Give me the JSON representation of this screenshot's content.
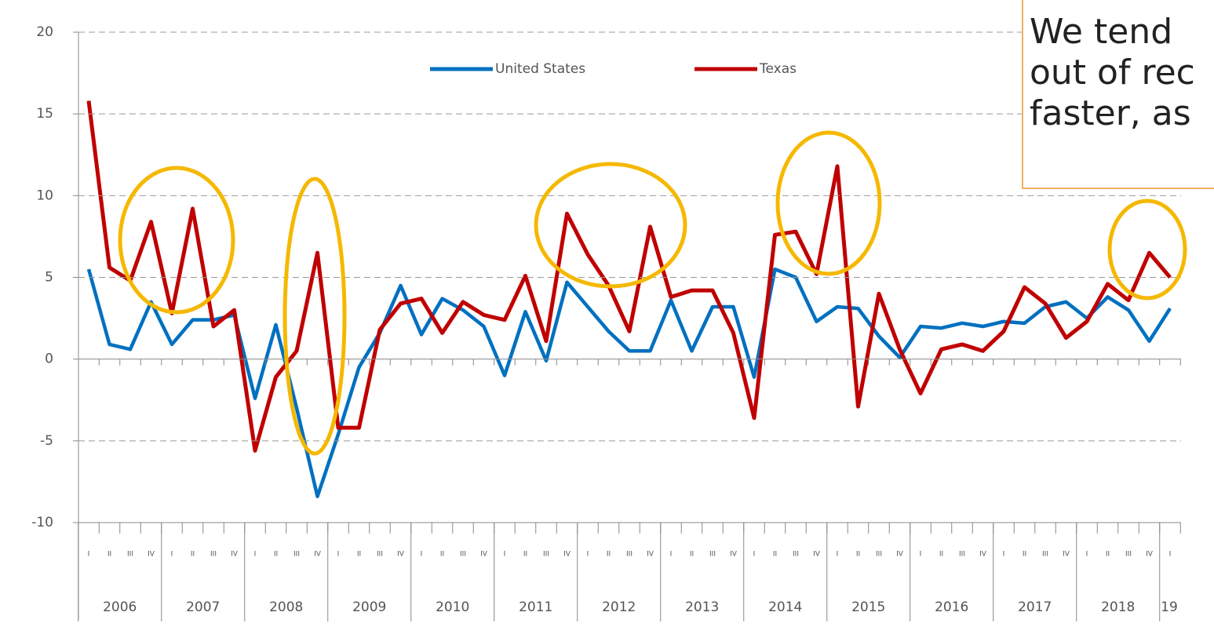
{
  "chart_data": {
    "type": "line",
    "categories": [
      "I",
      "II",
      "III",
      "IV",
      "I",
      "II",
      "III",
      "IV",
      "I",
      "II",
      "III",
      "IV",
      "I",
      "II",
      "III",
      "IV",
      "I",
      "II",
      "III",
      "IV",
      "I",
      "II",
      "III",
      "IV",
      "I",
      "II",
      "III",
      "IV",
      "I",
      "II",
      "III",
      "IV",
      "I",
      "II",
      "III",
      "IV",
      "I",
      "II",
      "III",
      "IV",
      "I",
      "II",
      "III",
      "IV",
      "I",
      "II",
      "III",
      "IV",
      "I",
      "II",
      "III",
      "IV",
      "I"
    ],
    "year_labels": [
      "2006",
      "2007",
      "2008",
      "2009",
      "2010",
      "2011",
      "2012",
      "2013",
      "2014",
      "2015",
      "2016",
      "2017",
      "2018",
      "19"
    ],
    "series": [
      {
        "name": "United States",
        "color": "#0070c0",
        "values": [
          5.5,
          0.9,
          0.6,
          3.5,
          0.9,
          2.4,
          2.4,
          2.7,
          -2.4,
          2.1,
          -3,
          -8.4,
          -4.6,
          -0.5,
          1.6,
          4.5,
          1.5,
          3.7,
          3.0,
          2.0,
          -1.0,
          2.9,
          -0.1,
          4.7,
          3.2,
          1.7,
          0.5,
          0.5,
          3.6,
          0.5,
          3.2,
          3.2,
          -1.1,
          5.5,
          5.0,
          2.3,
          3.2,
          3.1,
          1.4,
          0.1,
          2.0,
          1.9,
          2.2,
          2.0,
          2.3,
          2.2,
          3.2,
          3.5,
          2.5,
          3.8,
          3.0,
          1.1,
          3.1
        ]
      },
      {
        "name": "Texas",
        "color": "#c00000",
        "values": [
          15.8,
          5.6,
          4.8,
          8.4,
          2.8,
          9.2,
          2.0,
          3.0,
          -5.6,
          -1.1,
          0.5,
          6.5,
          -4.2,
          -4.2,
          1.8,
          3.4,
          3.7,
          1.6,
          3.5,
          2.7,
          2.4,
          5.1,
          1.1,
          8.9,
          6.4,
          4.5,
          1.7,
          8.1,
          3.8,
          4.2,
          4.2,
          1.6,
          -3.6,
          7.6,
          7.8,
          5.2,
          11.8,
          -2.9,
          4.0,
          0.6,
          -2.1,
          0.6,
          0.9,
          0.5,
          1.7,
          4.4,
          3.4,
          1.3,
          2.3,
          4.6,
          3.6,
          6.5,
          5.0
        ]
      }
    ],
    "ylim": [
      -10,
      20
    ],
    "yticks": [
      -10,
      -5,
      0,
      5,
      10,
      15,
      20
    ],
    "grid": true,
    "legend": "top",
    "annotation": [
      "We tend",
      "out of rec",
      "faster, as"
    ]
  }
}
